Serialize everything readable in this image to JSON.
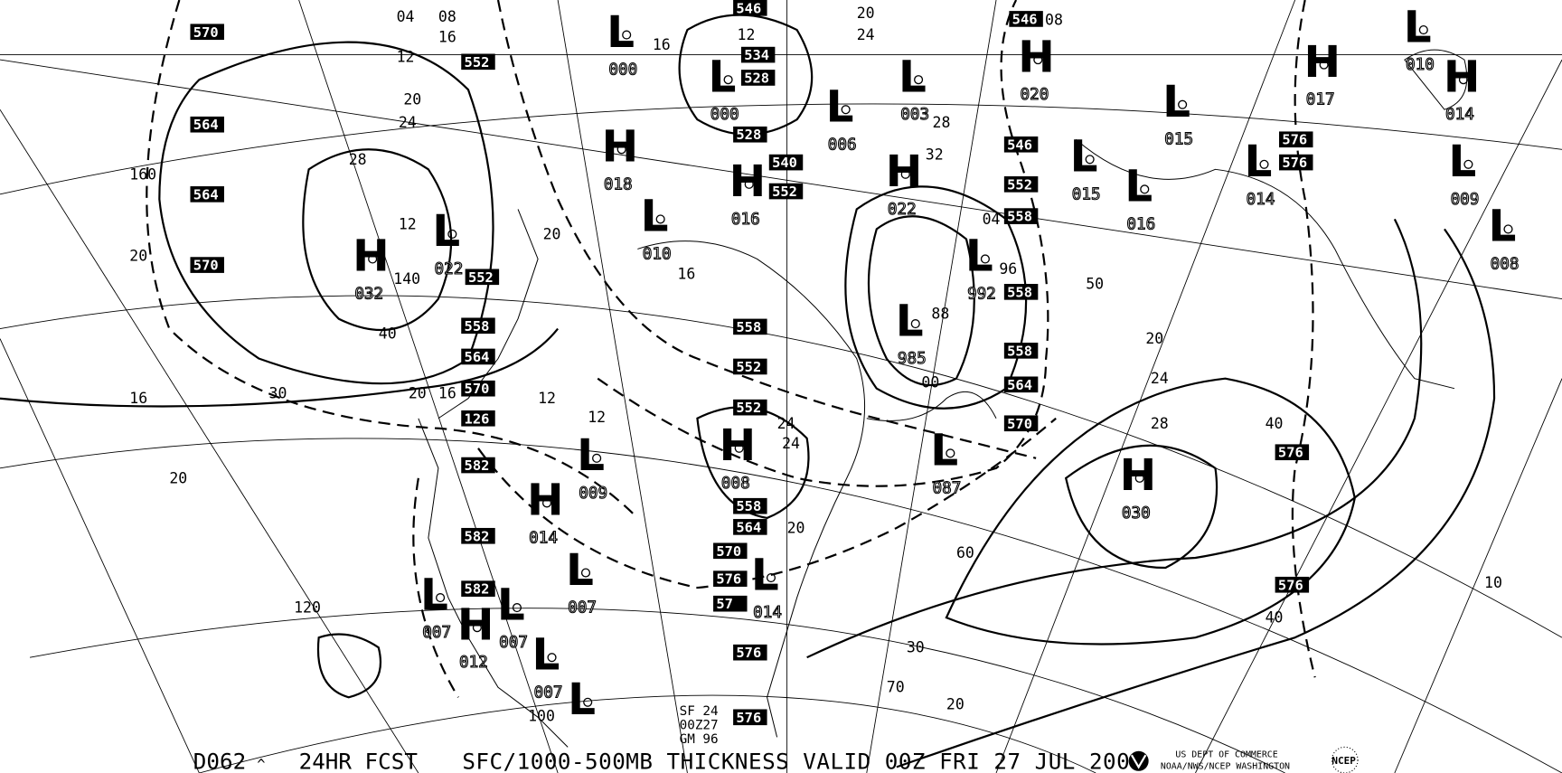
{
  "footer": {
    "product_id": "D062",
    "caret": "^",
    "forecast": "24HR FCST",
    "title": "SFC/1000-500MB THICKNESS VALID 00Z FRI 27 JUL 200",
    "agency_line1": "US DEPT OF COMMERCE",
    "agency_line2": "NOAA/NWS/NCEP WASHINGTON",
    "logo_ncep": "NCEP"
  },
  "stamp": {
    "line1": "SF 24",
    "line2": "00Z27",
    "line3": "GM 96"
  },
  "pressure_centers": [
    {
      "type": "H",
      "value": "032"
    },
    {
      "type": "L",
      "value": "022"
    },
    {
      "type": "L",
      "value": "000"
    },
    {
      "type": "L",
      "value": "000"
    },
    {
      "type": "H",
      "value": "018"
    },
    {
      "type": "H",
      "value": "016"
    },
    {
      "type": "L",
      "value": "010"
    },
    {
      "type": "L",
      "value": "006"
    },
    {
      "type": "L",
      "value": "003"
    },
    {
      "type": "H",
      "value": "020"
    },
    {
      "type": "H",
      "value": "022"
    },
    {
      "type": "L",
      "value": "992"
    },
    {
      "type": "L",
      "value": "985"
    },
    {
      "type": "L",
      "value": "015"
    },
    {
      "type": "L",
      "value": "015"
    },
    {
      "type": "L",
      "value": "016"
    },
    {
      "type": "L",
      "value": "014"
    },
    {
      "type": "H",
      "value": "017"
    },
    {
      "type": "L",
      "value": "010"
    },
    {
      "type": "H",
      "value": "014"
    },
    {
      "type": "L",
      "value": "009"
    },
    {
      "type": "L",
      "value": "008"
    },
    {
      "type": "H",
      "value": "030"
    },
    {
      "type": "L",
      "value": "087"
    },
    {
      "type": "H",
      "value": "008"
    },
    {
      "type": "L",
      "value": "009"
    },
    {
      "type": "H",
      "value": "014"
    },
    {
      "type": "L",
      "value": "007"
    },
    {
      "type": "L",
      "value": "007"
    },
    {
      "type": "H",
      "value": "012"
    },
    {
      "type": "L",
      "value": "007"
    },
    {
      "type": "L",
      "value": "007"
    },
    {
      "type": "L",
      "value": "014"
    },
    {
      "type": "L",
      "value": ""
    }
  ],
  "thickness_labels": [
    "570",
    "552",
    "564",
    "564",
    "570",
    "552",
    "558",
    "564",
    "570",
    "126",
    "582",
    "582",
    "582",
    "546",
    "534",
    "528",
    "528",
    "540",
    "552",
    "558",
    "552",
    "552",
    "558",
    "564",
    "570",
    "576",
    "57",
    "576",
    "576",
    "546",
    "546",
    "552",
    "558",
    "558",
    "558",
    "564",
    "570",
    "576",
    "576",
    "576",
    "576"
  ],
  "isobar_labels": [
    "04",
    "08",
    "12",
    "16",
    "20",
    "24",
    "28",
    "12",
    "16",
    "20",
    "24",
    "20",
    "16",
    "12",
    "12",
    "16",
    "20",
    "24",
    "28",
    "32",
    "40",
    "50",
    "60",
    "20",
    "24",
    "28",
    "30",
    "40",
    "20",
    "10",
    "20",
    "30",
    "40",
    "70",
    "100",
    "120",
    "140",
    "160",
    "20",
    "16",
    "12",
    "08",
    "04",
    "96",
    "88",
    "00",
    "24",
    "20"
  ]
}
